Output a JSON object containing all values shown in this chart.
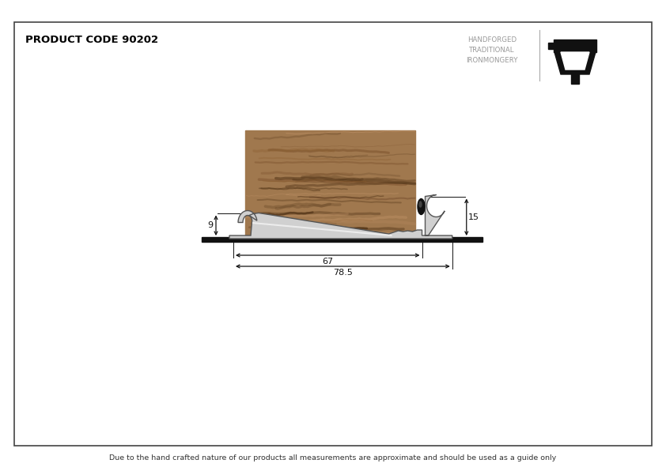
{
  "title": "PRODUCT CODE 90202",
  "footer": "Due to the hand crafted nature of our products all measurements are approximate and should be used as a guide only",
  "brand_line1": "HANDFORGED",
  "brand_line2": "TRADITIONAL",
  "brand_line3": "IRONMONGERY",
  "bg_color": "#ffffff",
  "border_color": "#444444",
  "dim_9": "9",
  "dim_15": "15",
  "dim_67": "67",
  "dim_785": "78.5",
  "wood_color_base": "#A0784E",
  "profile_color": "#D0D0D0",
  "profile_edge": "#555555",
  "floor_color": "#111111",
  "rubber_color": "#111111",
  "dim_color": "#111111",
  "brand_color": "#999999",
  "logo_color": "#111111"
}
